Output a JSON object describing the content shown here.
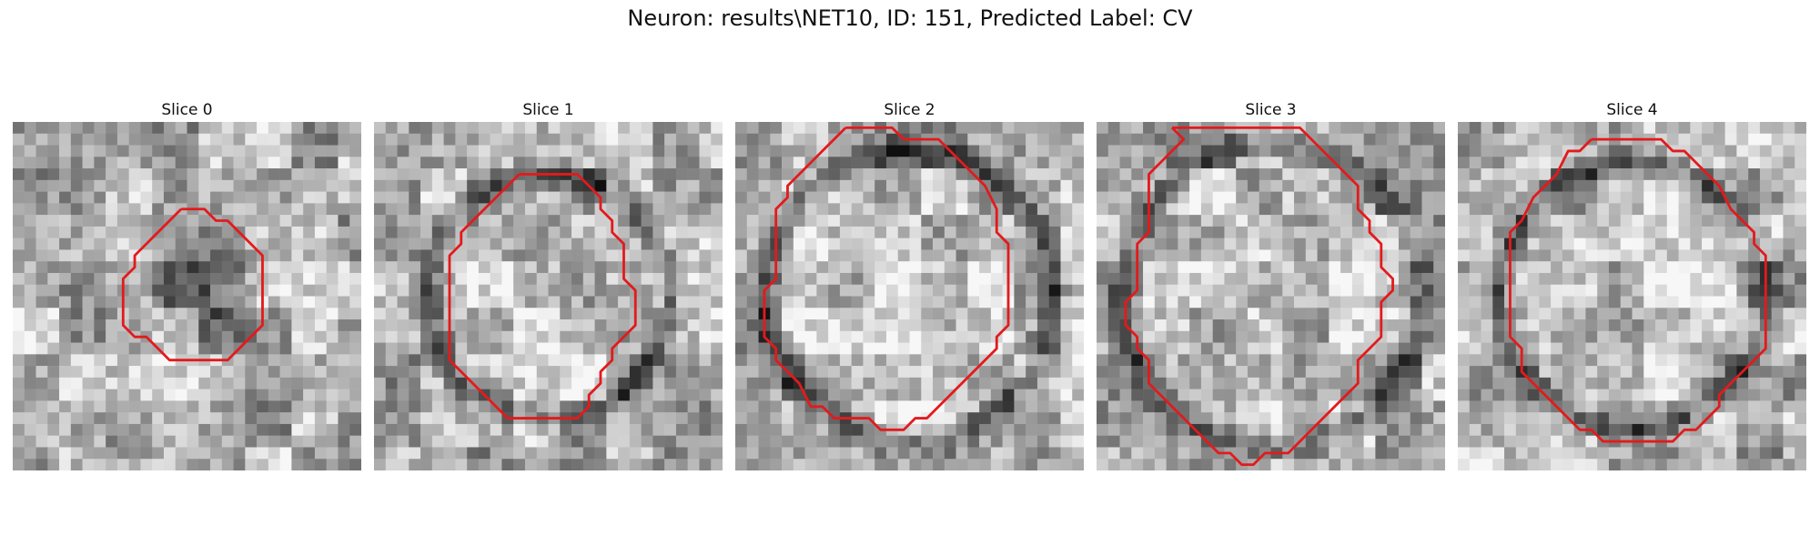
{
  "figure": {
    "title": "Neuron: results\\NET10, ID: 151, Predicted Label: CV",
    "outline_color": "#e31a1c"
  },
  "panels": [
    {
      "title": "Slice 0",
      "seed": 11,
      "image_description": "grainy grayscale EM tile with a small dark blob in the center",
      "ring_radius": 0.0,
      "blob_center": [
        16.5,
        14.5
      ],
      "blob_radius": 6.5,
      "contour": [
        [
          14.5,
          7.5
        ],
        [
          16.5,
          7.5
        ],
        [
          17.5,
          8.5
        ],
        [
          18.5,
          8.5
        ],
        [
          21.5,
          11.5
        ],
        [
          21.5,
          17.5
        ],
        [
          18.5,
          20.5
        ],
        [
          13.5,
          20.5
        ],
        [
          11.5,
          18.5
        ],
        [
          10.5,
          18.5
        ],
        [
          9.5,
          17.5
        ],
        [
          9.5,
          13.5
        ],
        [
          10.5,
          12.5
        ],
        [
          10.5,
          11.5
        ],
        [
          12.5,
          9.5
        ],
        [
          13.5,
          8.5
        ],
        [
          14.5,
          7.5
        ]
      ]
    },
    {
      "title": "Slice 1",
      "seed": 23,
      "image_description": "grayscale EM tile with a dark membrane ring around a lighter interior",
      "ring_radius": 10.5,
      "blob_center": [
        15,
        14
      ],
      "blob_radius": 0,
      "contour": [
        [
          12.5,
          4.5
        ],
        [
          17.5,
          4.5
        ],
        [
          19.5,
          6.5
        ],
        [
          19.5,
          7.5
        ],
        [
          20.5,
          8.5
        ],
        [
          20.5,
          9.5
        ],
        [
          21.5,
          10.5
        ],
        [
          21.5,
          13.5
        ],
        [
          22.5,
          14.5
        ],
        [
          22.5,
          17.5
        ],
        [
          21.5,
          18.5
        ],
        [
          20.5,
          19.5
        ],
        [
          20.5,
          20.5
        ],
        [
          19.5,
          21.5
        ],
        [
          19.5,
          22.5
        ],
        [
          18.5,
          23.5
        ],
        [
          18.5,
          24.5
        ],
        [
          17.5,
          25.5
        ],
        [
          11.5,
          25.5
        ],
        [
          10.5,
          24.5
        ],
        [
          8.5,
          22.5
        ],
        [
          6.5,
          20.5
        ],
        [
          6.5,
          11.5
        ],
        [
          7.5,
          10.5
        ],
        [
          7.5,
          9.5
        ],
        [
          8.5,
          8.5
        ],
        [
          9.5,
          7.5
        ],
        [
          12.5,
          4.5
        ]
      ]
    },
    {
      "title": "Slice 2",
      "seed": 37,
      "image_description": "grayscale EM tile with a large round vesicle bounded by a dark ring",
      "ring_radius": 12.5,
      "blob_center": [
        15,
        15
      ],
      "blob_radius": 0,
      "contour": [
        [
          9.5,
          0.5
        ],
        [
          13.5,
          0.5
        ],
        [
          14.5,
          1.5
        ],
        [
          17.5,
          1.5
        ],
        [
          20.5,
          4.5
        ],
        [
          21.5,
          5.5
        ],
        [
          22.5,
          7.5
        ],
        [
          22.5,
          9.5
        ],
        [
          23.5,
          10.5
        ],
        [
          23.5,
          17.5
        ],
        [
          22.5,
          18.5
        ],
        [
          22.5,
          19.5
        ],
        [
          20.5,
          21.5
        ],
        [
          18.5,
          23.5
        ],
        [
          17.5,
          24.5
        ],
        [
          16.5,
          25.5
        ],
        [
          15.5,
          25.5
        ],
        [
          14.5,
          26.5
        ],
        [
          12.5,
          26.5
        ],
        [
          11.5,
          25.5
        ],
        [
          8.5,
          25.5
        ],
        [
          7.5,
          24.5
        ],
        [
          6.5,
          24.5
        ],
        [
          5.5,
          22.5
        ],
        [
          4.5,
          21.5
        ],
        [
          3.5,
          20.5
        ],
        [
          3.5,
          19.5
        ],
        [
          2.5,
          18.5
        ],
        [
          2.5,
          14.5
        ],
        [
          3.5,
          13.5
        ],
        [
          3.5,
          7.5
        ],
        [
          4.5,
          6.5
        ],
        [
          4.5,
          5.5
        ],
        [
          5.5,
          4.5
        ],
        [
          6.5,
          3.5
        ],
        [
          7.5,
          2.5
        ],
        [
          8.5,
          1.5
        ],
        [
          9.5,
          0.5
        ]
      ]
    },
    {
      "title": "Slice 3",
      "seed": 53,
      "image_description": "grayscale EM tile with a large vesicle outlined by a dark membrane",
      "ring_radius": 13.0,
      "blob_center": [
        15,
        15
      ],
      "blob_radius": 0,
      "contour": [
        [
          6.5,
          0.5
        ],
        [
          17.5,
          0.5
        ],
        [
          20.5,
          3.5
        ],
        [
          21.5,
          4.5
        ],
        [
          22.5,
          5.5
        ],
        [
          22.5,
          7.5
        ],
        [
          23.5,
          8.5
        ],
        [
          23.5,
          9.5
        ],
        [
          24.5,
          10.5
        ],
        [
          24.5,
          12.5
        ],
        [
          25.5,
          13.5
        ],
        [
          25.5,
          14.5
        ],
        [
          24.5,
          15.5
        ],
        [
          24.5,
          18.5
        ],
        [
          23.5,
          19.5
        ],
        [
          22.5,
          20.5
        ],
        [
          22.5,
          22.5
        ],
        [
          21.5,
          23.5
        ],
        [
          19.5,
          25.5
        ],
        [
          18.5,
          26.5
        ],
        [
          17.5,
          27.5
        ],
        [
          16.5,
          28.5
        ],
        [
          14.5,
          28.5
        ],
        [
          13.5,
          29.5
        ],
        [
          12.5,
          29.5
        ],
        [
          11.5,
          28.5
        ],
        [
          10.5,
          28.5
        ],
        [
          8.5,
          26.5
        ],
        [
          7.5,
          25.5
        ],
        [
          6.5,
          24.5
        ],
        [
          5.5,
          23.5
        ],
        [
          4.5,
          22.5
        ],
        [
          4.5,
          20.5
        ],
        [
          3.5,
          19.5
        ],
        [
          3.5,
          18.5
        ],
        [
          2.5,
          17.5
        ],
        [
          2.5,
          15.5
        ],
        [
          3.5,
          14.5
        ],
        [
          3.5,
          10.5
        ],
        [
          4.5,
          9.5
        ],
        [
          4.5,
          4.5
        ],
        [
          5.5,
          3.5
        ],
        [
          6.5,
          2.5
        ],
        [
          7.5,
          1.5
        ],
        [
          6.5,
          0.5
        ]
      ]
    },
    {
      "title": "Slice 4",
      "seed": 71,
      "image_description": "grayscale EM tile with a round vesicle and dark boundary",
      "ring_radius": 11.5,
      "blob_center": [
        15,
        15
      ],
      "blob_radius": 0,
      "contour": [
        [
          11.5,
          1.5
        ],
        [
          17.5,
          1.5
        ],
        [
          18.5,
          2.5
        ],
        [
          19.5,
          2.5
        ],
        [
          21.5,
          4.5
        ],
        [
          22.5,
          5.5
        ],
        [
          23.5,
          7.5
        ],
        [
          25.5,
          9.5
        ],
        [
          25.5,
          10.5
        ],
        [
          26.5,
          11.5
        ],
        [
          26.5,
          19.5
        ],
        [
          25.5,
          20.5
        ],
        [
          24.5,
          21.5
        ],
        [
          23.5,
          22.5
        ],
        [
          22.5,
          23.5
        ],
        [
          22.5,
          24.5
        ],
        [
          21.5,
          25.5
        ],
        [
          20.5,
          26.5
        ],
        [
          19.5,
          26.5
        ],
        [
          18.5,
          27.5
        ],
        [
          12.5,
          27.5
        ],
        [
          11.5,
          26.5
        ],
        [
          10.5,
          26.5
        ],
        [
          9.5,
          25.5
        ],
        [
          8.5,
          24.5
        ],
        [
          7.5,
          23.5
        ],
        [
          6.5,
          22.5
        ],
        [
          5.5,
          21.5
        ],
        [
          5.5,
          19.5
        ],
        [
          4.5,
          18.5
        ],
        [
          4.5,
          9.5
        ],
        [
          5.5,
          8.5
        ],
        [
          6.5,
          6.5
        ],
        [
          7.5,
          5.5
        ],
        [
          8.5,
          4.5
        ],
        [
          9.5,
          2.5
        ],
        [
          10.5,
          2.5
        ],
        [
          11.5,
          1.5
        ]
      ]
    }
  ]
}
